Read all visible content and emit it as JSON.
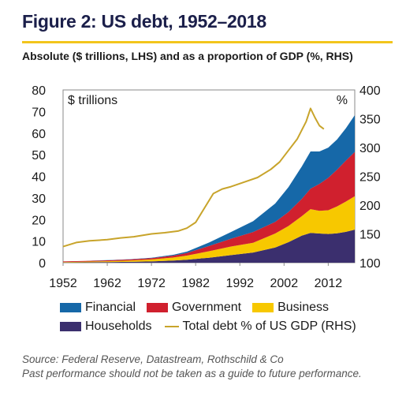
{
  "figure": {
    "title": "Figure 2: US debt, 1952–2018",
    "subtitle": "Absolute ($ trillions, LHS) and as a proportion of GDP (%, RHS)",
    "source_line_1": "Source: Federal Reserve, Datastream, Rothschild & Co",
    "source_line_2": "Past performance should not be taken as a guide to future performance."
  },
  "colors": {
    "Households": "#3b2f6e",
    "Business": "#f7c800",
    "Government": "#d0202e",
    "Financial": "#1668a8",
    "total_line": "#c8a42b",
    "title": "#1b1f4a",
    "rule": "#f2c51c"
  },
  "legend": {
    "financial": "Financial",
    "government": "Government",
    "business": "Business",
    "households": "Households",
    "total_line": "Total debt % of US GDP (RHS)"
  },
  "chart_data": {
    "type": "area",
    "stacked": true,
    "left_axis_unit": "$ trillions",
    "right_axis_unit": "%",
    "ylim_left": [
      0,
      80
    ],
    "ylim_right": [
      100,
      400
    ],
    "xlim": [
      1952,
      2018
    ],
    "x_tick_labels": [
      "1952",
      "1962",
      "1972",
      "1982",
      "1992",
      "2002",
      "2012"
    ],
    "y_left_ticks": [
      "0",
      "10",
      "20",
      "30",
      "40",
      "50",
      "60",
      "70",
      "80"
    ],
    "y_right_ticks": [
      "100",
      "150",
      "200",
      "250",
      "300",
      "350",
      "400"
    ],
    "grid": false,
    "legend_position": "bottom",
    "x": [
      1952,
      1957,
      1962,
      1967,
      1972,
      1977,
      1980,
      1985,
      1990,
      1995,
      2000,
      2003,
      2006,
      2008,
      2010,
      2012,
      2014,
      2016,
      2018
    ],
    "series": [
      {
        "name": "Households",
        "values": [
          0.1,
          0.2,
          0.3,
          0.4,
          0.6,
          1.0,
          1.4,
          2.3,
          3.5,
          4.7,
          7.0,
          9.5,
          12.5,
          13.8,
          13.5,
          13.3,
          13.6,
          14.3,
          15.3
        ]
      },
      {
        "name": "Business",
        "values": [
          0.2,
          0.3,
          0.4,
          0.6,
          0.9,
          1.4,
          1.9,
          3.0,
          4.0,
          4.5,
          6.5,
          7.5,
          9.0,
          11.0,
          10.5,
          11.0,
          12.5,
          14.0,
          15.5
        ]
      },
      {
        "name": "Government",
        "values": [
          0.3,
          0.3,
          0.4,
          0.5,
          0.6,
          0.9,
          1.2,
          2.4,
          3.6,
          5.0,
          5.4,
          6.5,
          8.0,
          9.5,
          12.5,
          15.0,
          17.0,
          19.0,
          20.5
        ]
      },
      {
        "name": "Financial",
        "values": [
          0.0,
          0.0,
          0.1,
          0.1,
          0.2,
          0.4,
          0.6,
          1.6,
          3.1,
          5.0,
          8.5,
          11.5,
          15.0,
          17.2,
          15.0,
          14.0,
          14.0,
          15.0,
          17.0
        ]
      },
      {
        "name": "Total debt % of US GDP (RHS)",
        "axis": "right",
        "x": [
          1952,
          1955,
          1958,
          1962,
          1965,
          1968,
          1972,
          1975,
          1978,
          1980,
          1982,
          1984,
          1986,
          1988,
          1990,
          1993,
          1996,
          1999,
          2001,
          2003,
          2005,
          2007,
          2008,
          2009,
          2010,
          2011
        ],
        "values": [
          128,
          135,
          138,
          140,
          143,
          145,
          150,
          152,
          155,
          160,
          170,
          195,
          220,
          228,
          232,
          240,
          248,
          262,
          275,
          295,
          315,
          345,
          368,
          352,
          338,
          332
        ]
      }
    ]
  }
}
